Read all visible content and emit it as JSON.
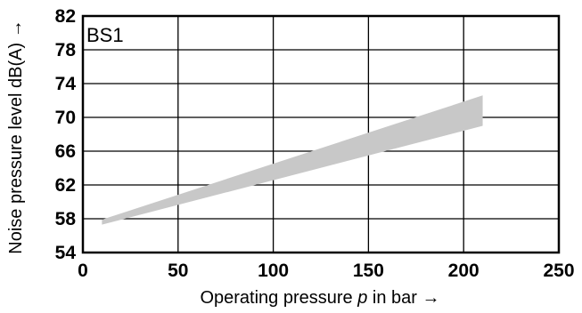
{
  "chart_data": {
    "type": "area",
    "panel_label": "BS1",
    "xlabel": "Operating pressure p in bar →",
    "xlabel_parts": [
      "Operating pressure ",
      "p",
      " in bar →"
    ],
    "ylabel": "Noise pressure level dB(A) →",
    "xlim": [
      0,
      250
    ],
    "ylim": [
      54,
      82
    ],
    "xticks": [
      0,
      50,
      100,
      150,
      200,
      250
    ],
    "yticks": [
      54,
      58,
      62,
      66,
      70,
      74,
      78,
      82
    ],
    "grid": true,
    "series": [
      {
        "x": [
          10,
          210
        ],
        "y_low": [
          57.3,
          69.0
        ],
        "y_high": [
          57.9,
          72.6
        ],
        "color": "#c8c8c8"
      }
    ]
  }
}
